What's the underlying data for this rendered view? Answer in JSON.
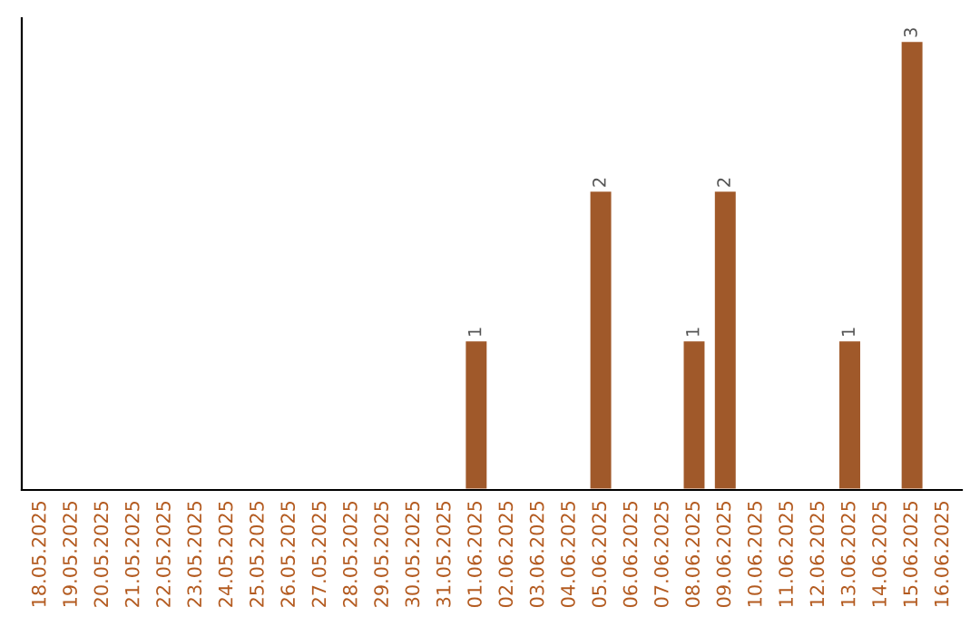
{
  "chart_data": {
    "type": "bar",
    "categories": [
      "18.05.2025",
      "19.05.2025",
      "20.05.2025",
      "21.05.2025",
      "22.05.2025",
      "23.05.2025",
      "24.05.2025",
      "25.05.2025",
      "26.05.2025",
      "27.05.2025",
      "28.05.2025",
      "29.05.2025",
      "30.05.2025",
      "31.05.2025",
      "01.06.2025",
      "02.06.2025",
      "03.06.2025",
      "04.06.2025",
      "05.06.2025",
      "06.06.2025",
      "07.06.2025",
      "08.06.2025",
      "09.06.2025",
      "10.06.2025",
      "11.06.2025",
      "12.06.2025",
      "13.06.2025",
      "14.06.2025",
      "15.06.2025",
      "16.06.2025"
    ],
    "values": [
      null,
      null,
      null,
      null,
      null,
      null,
      null,
      null,
      null,
      null,
      null,
      null,
      null,
      null,
      1,
      null,
      null,
      null,
      2,
      null,
      null,
      1,
      2,
      null,
      null,
      null,
      1,
      null,
      3,
      null
    ],
    "data_labels": true,
    "color": "#a0592a",
    "tick_labels": "x",
    "grid": false,
    "legend": false
  }
}
